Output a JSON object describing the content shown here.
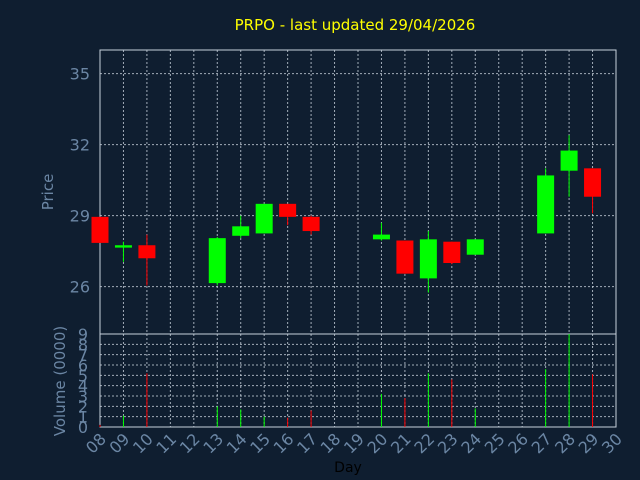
{
  "chart_data": {
    "type": "candlestick",
    "title": "PRPO - last updated 29/04/2026",
    "xlabel": "Day",
    "price_panel": {
      "ylabel": "Price",
      "yticks": [
        26,
        29,
        32,
        35
      ],
      "ylim": [
        24,
        36
      ]
    },
    "volume_panel": {
      "ylabel": "Volume (0000)",
      "yticks": [
        0,
        1,
        2,
        3,
        4,
        5,
        6,
        7,
        8,
        9
      ],
      "ylim": [
        0,
        9
      ]
    },
    "x_ticks": [
      "08",
      "09",
      "10",
      "11",
      "12",
      "13",
      "14",
      "15",
      "16",
      "17",
      "18",
      "19",
      "20",
      "21",
      "22",
      "23",
      "24",
      "25",
      "26",
      "27",
      "28",
      "29",
      "30"
    ],
    "grid": true,
    "colors": {
      "up": "#00ff00",
      "down": "#ff0000",
      "background": "#0f1e30",
      "axis_text": "#6b86a4",
      "title": "#ffff00",
      "frame": "#c7d1dc"
    },
    "candles": [
      {
        "day": "08",
        "open": 28.95,
        "high": 28.95,
        "low": 27.85,
        "close": 27.85,
        "volume": 0.2
      },
      {
        "day": "09",
        "open": 27.65,
        "high": 27.9,
        "low": 27.05,
        "close": 27.75,
        "volume": 1.1
      },
      {
        "day": "10",
        "open": 27.75,
        "high": 28.2,
        "low": 26.05,
        "close": 27.2,
        "volume": 5.2
      },
      {
        "day": "13",
        "open": 26.15,
        "high": 28.1,
        "low": 26.05,
        "close": 28.05,
        "volume": 2.0
      },
      {
        "day": "14",
        "open": 28.15,
        "high": 29.0,
        "low": 28.05,
        "close": 28.55,
        "volume": 1.7
      },
      {
        "day": "15",
        "open": 28.25,
        "high": 29.5,
        "low": 28.25,
        "close": 29.5,
        "volume": 1.0
      },
      {
        "day": "16",
        "open": 29.5,
        "high": 29.5,
        "low": 28.6,
        "close": 28.95,
        "volume": 0.9
      },
      {
        "day": "17",
        "open": 28.95,
        "high": 29.0,
        "low": 28.2,
        "close": 28.35,
        "volume": 1.6
      },
      {
        "day": "20",
        "open": 28.0,
        "high": 28.7,
        "low": 27.95,
        "close": 28.2,
        "volume": 3.2
      },
      {
        "day": "21",
        "open": 27.95,
        "high": 27.95,
        "low": 26.55,
        "close": 26.55,
        "volume": 2.8
      },
      {
        "day": "22",
        "open": 26.35,
        "high": 28.35,
        "low": 25.75,
        "close": 28.0,
        "volume": 5.2
      },
      {
        "day": "23",
        "open": 27.9,
        "high": 27.9,
        "low": 26.95,
        "close": 27.0,
        "volume": 4.6
      },
      {
        "day": "24",
        "open": 27.35,
        "high": 28.0,
        "low": 27.35,
        "close": 28.0,
        "volume": 1.8
      },
      {
        "day": "27",
        "open": 28.25,
        "high": 31.0,
        "low": 28.25,
        "close": 30.7,
        "volume": 5.6
      },
      {
        "day": "28",
        "open": 30.9,
        "high": 32.4,
        "low": 29.8,
        "close": 31.75,
        "volume": 9.0
      },
      {
        "day": "29",
        "open": 31.0,
        "high": 31.0,
        "low": 29.1,
        "close": 29.8,
        "volume": 5.1
      }
    ]
  }
}
